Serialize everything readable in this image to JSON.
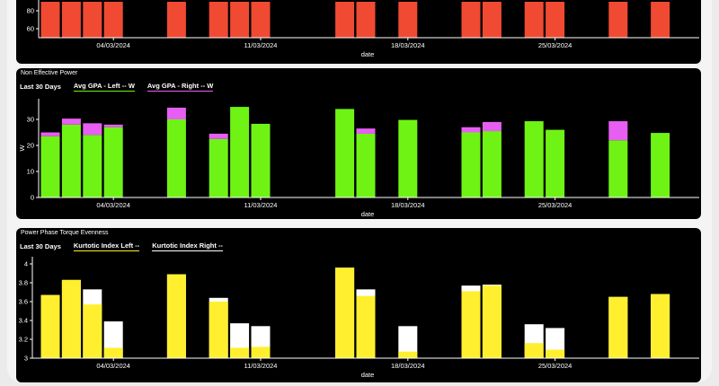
{
  "colors": {
    "red": "#f04a33",
    "green": "#6ff314",
    "pink": "#e75ff2",
    "yellow": "#ffef2e",
    "white": "#ffffff"
  },
  "chart_data": [
    {
      "type": "bar",
      "title": "",
      "xlabel": "date",
      "ylabel": "",
      "x_ticks": [
        "04/03/2024",
        "11/03/2024",
        "18/03/2024",
        "25/03/2024"
      ],
      "x_tick_days": [
        4,
        11,
        18,
        25
      ],
      "y_ticks": [
        60,
        80
      ],
      "ylim": [
        50,
        90
      ],
      "days": [
        1,
        2,
        3,
        4,
        7,
        9,
        10,
        11,
        15,
        16,
        18,
        21,
        22,
        24,
        25,
        28,
        30
      ],
      "values": [
        90,
        90,
        90,
        90,
        90,
        90,
        90,
        90,
        90,
        90,
        90,
        90,
        90,
        90,
        90,
        90,
        90
      ]
    },
    {
      "type": "bar",
      "title": "Non Effective Power",
      "xlabel": "date",
      "ylabel": "W",
      "legend_label": "Last 30 Days",
      "legend": [
        "Avg GPA - Left -- W",
        "Avg GPA - Right -- W"
      ],
      "x_ticks": [
        "04/03/2024",
        "11/03/2024",
        "18/03/2024",
        "25/03/2024"
      ],
      "x_tick_days": [
        4,
        11,
        18,
        25
      ],
      "y_ticks": [
        0,
        10,
        20,
        30
      ],
      "ylim": [
        0,
        38
      ],
      "stacked": true,
      "days": [
        1,
        2,
        3,
        4,
        7,
        9,
        10,
        11,
        15,
        16,
        18,
        21,
        22,
        24,
        25,
        28,
        30
      ],
      "series": [
        {
          "name": "Avg GPA - Left -- W",
          "values": [
            23.5,
            28,
            24,
            27,
            30,
            22.5,
            34.8,
            28.3,
            34,
            24.5,
            29.8,
            25,
            25.5,
            29.3,
            26,
            22,
            24.8
          ]
        },
        {
          "name": "Avg GPA - Right -- W",
          "values": [
            1.5,
            2.3,
            4.5,
            1,
            4.5,
            2,
            0,
            0,
            0,
            2,
            0,
            2,
            3.5,
            0,
            0,
            7.3,
            0
          ]
        }
      ]
    },
    {
      "type": "bar",
      "title": "Power Phase Torque Evenness",
      "xlabel": "date",
      "ylabel": "",
      "legend_label": "Last 30 Days",
      "legend": [
        "Kurtotic Index Left --",
        "Kurtotic Index Right --"
      ],
      "x_ticks": [
        "04/03/2024",
        "11/03/2024",
        "18/03/2024",
        "25/03/2024"
      ],
      "x_tick_days": [
        4,
        11,
        18,
        25
      ],
      "y_ticks": [
        "3",
        "3.2",
        "3.4",
        "3.6",
        "3.8",
        "4"
      ],
      "ylim": [
        3,
        4.05
      ],
      "days": [
        1,
        2,
        3,
        4,
        7,
        9,
        10,
        11,
        15,
        16,
        18,
        21,
        22,
        24,
        25,
        28,
        30
      ],
      "series": [
        {
          "name": "Kurtotic Index Left --",
          "values": [
            3.67,
            3.83,
            3.57,
            3.11,
            3.89,
            3.6,
            3.11,
            3.12,
            3.96,
            3.66,
            3.07,
            3.71,
            3.77,
            3.16,
            3.09,
            3.65,
            3.68
          ]
        },
        {
          "name": "Kurtotic Index Right --",
          "values": [
            3.67,
            3.83,
            3.73,
            3.39,
            3.89,
            3.64,
            3.37,
            3.34,
            3.96,
            3.73,
            3.34,
            3.77,
            3.78,
            3.36,
            3.32,
            3.65,
            3.68
          ]
        }
      ]
    }
  ]
}
